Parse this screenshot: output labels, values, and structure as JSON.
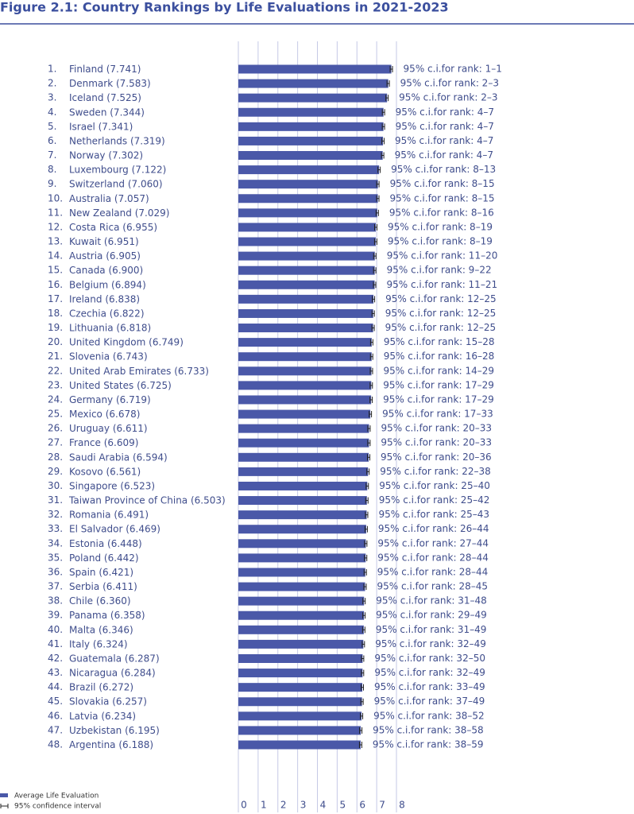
{
  "chart_data": {
    "type": "hbar",
    "title": "Figure 2.1: Country Rankings by Life Evaluations in 2021-2023",
    "ranks": [
      "1.",
      "2.",
      "3.",
      "4.",
      "5.",
      "6.",
      "7.",
      "8.",
      "9.",
      "10.",
      "11.",
      "12.",
      "13.",
      "14.",
      "15.",
      "16.",
      "17.",
      "18.",
      "19.",
      "20.",
      "21.",
      "22.",
      "23.",
      "24.",
      "25.",
      "26.",
      "27.",
      "28.",
      "29.",
      "30.",
      "31.",
      "32.",
      "33.",
      "34.",
      "35.",
      "36.",
      "37.",
      "38.",
      "39.",
      "40.",
      "41.",
      "42.",
      "43.",
      "44.",
      "45.",
      "46.",
      "47.",
      "48."
    ],
    "categories": [
      "Finland",
      "Denmark",
      "Iceland",
      "Sweden",
      "Israel",
      "Netherlands",
      "Norway",
      "Luxembourg",
      "Switzerland",
      "Australia",
      "New Zealand",
      "Costa Rica",
      "Kuwait",
      "Austria",
      "Canada",
      "Belgium",
      "Ireland",
      "Czechia",
      "Lithuania",
      "United Kingdom",
      "Slovenia",
      "United Arab Emirates",
      "United States",
      "Germany",
      "Mexico",
      "Uruguay",
      "France",
      "Saudi Arabia",
      "Kosovo",
      "Singapore",
      "Taiwan Province of China",
      "Romania",
      "El Salvador",
      "Estonia",
      "Poland",
      "Spain",
      "Serbia",
      "Chile",
      "Panama",
      "Malta",
      "Italy",
      "Guatemala",
      "Nicaragua",
      "Brazil",
      "Slovakia",
      "Latvia",
      "Uzbekistan",
      "Argentina"
    ],
    "series": [
      {
        "name": "Average Life Evaluation",
        "color": "#4a58a8",
        "values": [
          7.741,
          7.583,
          7.525,
          7.344,
          7.341,
          7.319,
          7.302,
          7.122,
          7.06,
          7.057,
          7.029,
          6.955,
          6.951,
          6.905,
          6.9,
          6.894,
          6.838,
          6.822,
          6.818,
          6.749,
          6.743,
          6.733,
          6.725,
          6.719,
          6.678,
          6.611,
          6.609,
          6.594,
          6.561,
          6.523,
          6.503,
          6.491,
          6.469,
          6.448,
          6.442,
          6.421,
          6.411,
          6.36,
          6.358,
          6.346,
          6.324,
          6.287,
          6.284,
          6.272,
          6.257,
          6.234,
          6.195,
          6.188
        ],
        "value_labels": [
          "(7.741)",
          "(7.583)",
          "(7.525)",
          "(7.344)",
          "(7.341)",
          "(7.319)",
          "(7.302)",
          "(7.122)",
          "(7.060)",
          "(7.057)",
          "(7.029)",
          "(6.955)",
          "(6.951)",
          "(6.905)",
          "(6.900)",
          "(6.894)",
          "(6.838)",
          "(6.822)",
          "(6.818)",
          "(6.749)",
          "(6.743)",
          "(6.733)",
          "(6.725)",
          "(6.719)",
          "(6.678)",
          "(6.611)",
          "(6.609)",
          "(6.594)",
          "(6.561)",
          "(6.523)",
          "(6.503)",
          "(6.491)",
          "(6.469)",
          "(6.448)",
          "(6.442)",
          "(6.421)",
          "(6.411)",
          "(6.360)",
          "(6.358)",
          "(6.346)",
          "(6.324)",
          "(6.287)",
          "(6.284)",
          "(6.272)",
          "(6.257)",
          "(6.234)",
          "(6.195)",
          "(6.188)"
        ],
        "errors": [
          0.06,
          0.06,
          0.06,
          0.06,
          0.06,
          0.06,
          0.06,
          0.06,
          0.06,
          0.06,
          0.06,
          0.06,
          0.06,
          0.06,
          0.06,
          0.06,
          0.06,
          0.06,
          0.06,
          0.06,
          0.06,
          0.06,
          0.06,
          0.06,
          0.06,
          0.06,
          0.06,
          0.06,
          0.06,
          0.06,
          0.06,
          0.06,
          0.06,
          0.06,
          0.06,
          0.06,
          0.06,
          0.06,
          0.06,
          0.06,
          0.06,
          0.06,
          0.06,
          0.06,
          0.06,
          0.06,
          0.06,
          0.06
        ]
      }
    ],
    "error_name": "95% confidence interval",
    "ci_labels": [
      "95% c.i.for rank: 1–1",
      "95% c.i.for rank: 2–3",
      "95% c.i.for rank: 2–3",
      "95% c.i.for rank: 4–7",
      "95% c.i.for rank: 4–7",
      "95% c.i.for rank: 4–7",
      "95% c.i.for rank: 4–7",
      "95% c.i.for rank: 8–13",
      "95% c.i.for rank: 8–15",
      "95% c.i.for rank: 8–15",
      "95% c.i.for rank: 8–16",
      "95% c.i.for rank: 8–19",
      "95% c.i.for rank: 8–19",
      "95% c.i.for rank: 11–20",
      "95% c.i.for rank: 9–22",
      "95% c.i.for rank: 11–21",
      "95% c.i.for rank: 12–25",
      "95% c.i.for rank: 12–25",
      "95% c.i.for rank: 12–25",
      "95% c.i.for rank: 15–28",
      "95% c.i.for rank: 16–28",
      "95% c.i.for rank: 14–29",
      "95% c.i.for rank: 17–29",
      "95% c.i.for rank: 17–29",
      "95% c.i.for rank: 17–33",
      "95% c.i.for rank: 20–33",
      "95% c.i.for rank: 20–33",
      "95% c.i.for rank: 20–36",
      "95% c.i.for rank: 22–38",
      "95% c.i.for rank: 25–40",
      "95% c.i.for rank: 25–42",
      "95% c.i.for rank: 25–43",
      "95% c.i.for rank: 26–44",
      "95% c.i.for rank: 27–44",
      "95% c.i.for rank: 28–44",
      "95% c.i.for rank: 28–44",
      "95% c.i.for rank: 28–45",
      "95% c.i.for rank: 31–48",
      "95% c.i.for rank: 29–49",
      "95% c.i.for rank: 31–49",
      "95% c.i.for rank: 32–49",
      "95% c.i.for rank: 32–50",
      "95% c.i.for rank: 32–49",
      "95% c.i.for rank: 33–49",
      "95% c.i.for rank: 37–49",
      "95% c.i.for rank: 38–52",
      "95% c.i.for rank: 38–58",
      "95% c.i.for rank: 38–59"
    ],
    "xlim": [
      0,
      8
    ],
    "xticks": [
      0,
      1,
      2,
      3,
      4,
      5,
      6,
      7,
      8
    ],
    "grid": true
  }
}
